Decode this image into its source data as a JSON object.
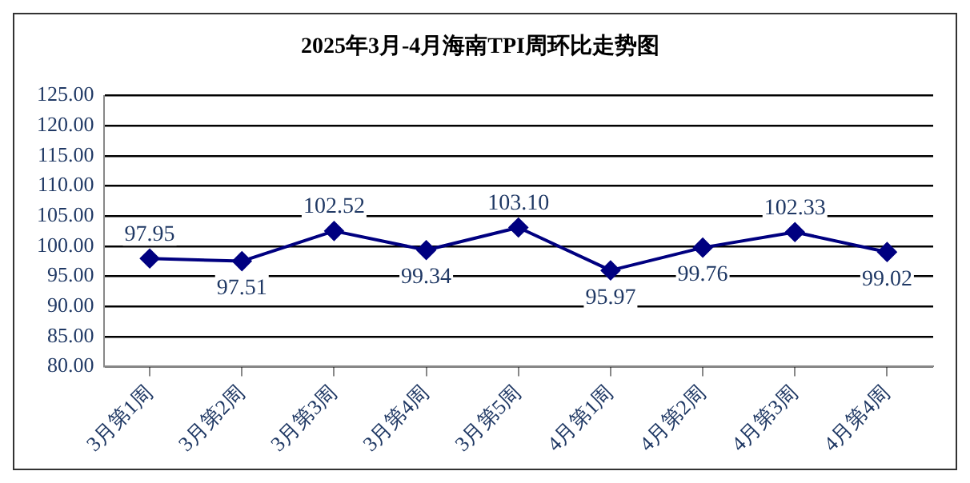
{
  "chart_data": {
    "type": "line",
    "title": "2025年3月-4月海南TPI周环比走势图",
    "categories": [
      "3月第1周",
      "3月第2周",
      "3月第3周",
      "3月第4周",
      "3月第5周",
      "4月第1周",
      "4月第2周",
      "4月第3周",
      "4月第4周"
    ],
    "series": [
      {
        "color": "#000080",
        "values": [
          97.95,
          97.51,
          102.52,
          99.34,
          103.1,
          95.97,
          99.76,
          102.33,
          99.02
        ],
        "value_labels": [
          "97.95",
          "97.51",
          "102.52",
          "99.34",
          "103.10",
          "95.97",
          "99.76",
          "102.33",
          "99.02"
        ]
      }
    ],
    "ylim": [
      80,
      125
    ],
    "yticks": [
      {
        "value": 80,
        "label": "80.00"
      },
      {
        "value": 85,
        "label": "85.00"
      },
      {
        "value": 90,
        "label": "90.00"
      },
      {
        "value": 95,
        "label": "95.00"
      },
      {
        "value": 100,
        "label": "100.00"
      },
      {
        "value": 105,
        "label": "105.00"
      },
      {
        "value": 110,
        "label": "110.00"
      },
      {
        "value": 115,
        "label": "115.00"
      },
      {
        "value": 120,
        "label": "120.00"
      },
      {
        "value": 125,
        "label": "125.00"
      }
    ],
    "grid": "y",
    "legend": false,
    "marker": "diamond",
    "line_style": "solid"
  }
}
